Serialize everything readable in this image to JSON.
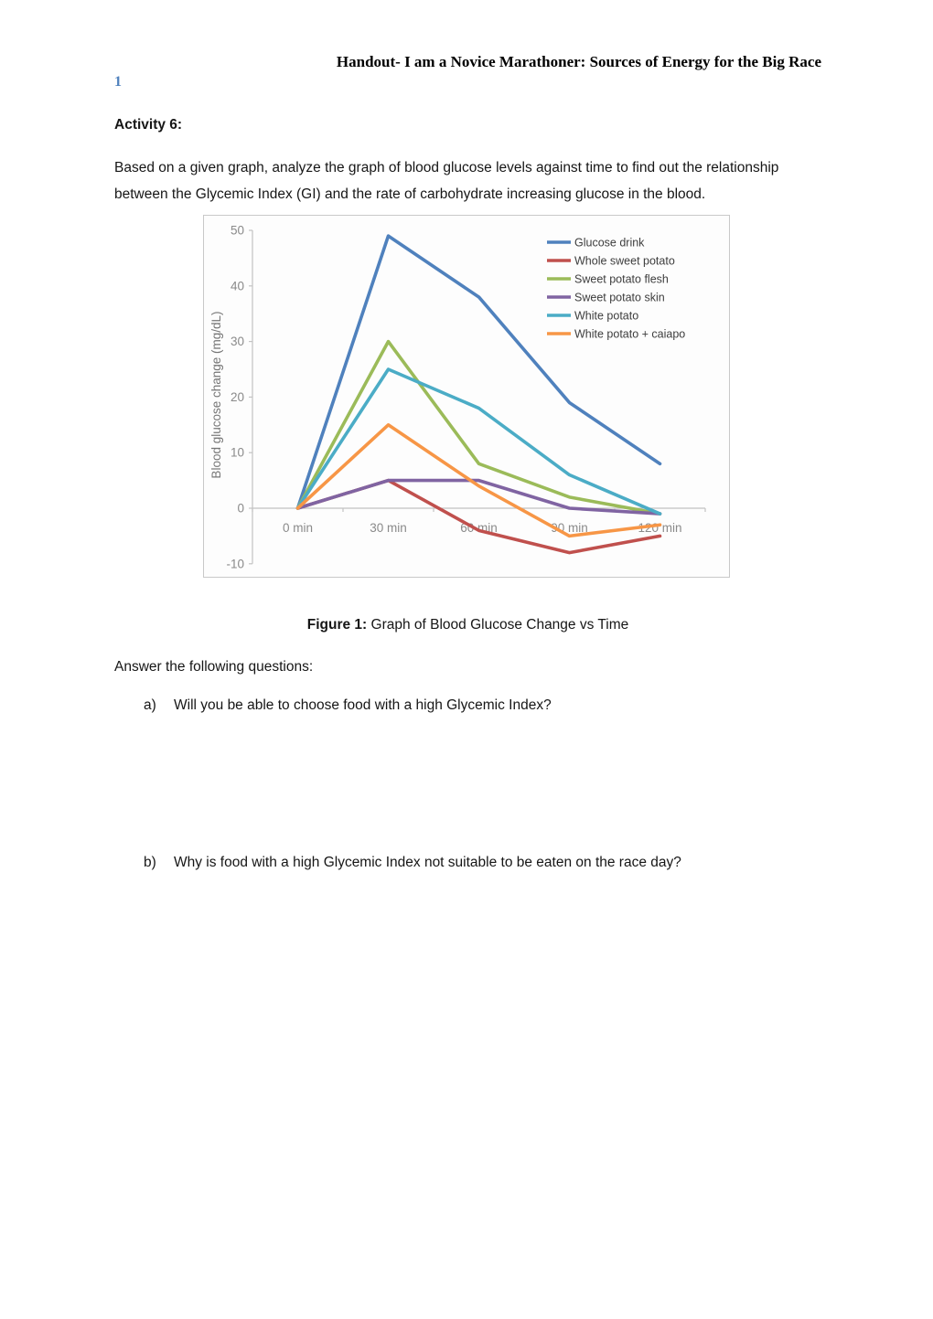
{
  "header": {
    "title": "Handout- I am a Novice Marathoner: Sources of Energy for the Big Race",
    "page_number": "1"
  },
  "activity": {
    "heading": "Activity 6:",
    "description": "Based on a given graph, analyze the graph of blood glucose levels against time to find out the relationship between the Glycemic Index (GI) and the rate of carbohydrate increasing glucose in the blood."
  },
  "figure": {
    "label": "Figure 1:",
    "caption": "Graph of Blood Glucose Change vs Time"
  },
  "questions": {
    "intro": "Answer the following questions:",
    "items": [
      {
        "letter": "a)",
        "text": "Will you be able to choose food with a high Glycemic Index?"
      },
      {
        "letter": "b)",
        "text": "Why is food with a high Glycemic Index not suitable to be eaten on the race day?"
      }
    ]
  },
  "chart_data": {
    "type": "line",
    "title": "",
    "xlabel": "",
    "ylabel": "Blood glucose change (mg/dL)",
    "categories": [
      "0 min",
      "30 min",
      "60 min",
      "90 min",
      "120 min"
    ],
    "x_minutes": [
      0,
      30,
      60,
      90,
      120
    ],
    "ylim": [
      -10,
      50
    ],
    "yticks": [
      -10,
      0,
      10,
      20,
      30,
      40,
      50
    ],
    "grid": false,
    "legend_position": "top-right-inside",
    "axis_color": "#c3c3c3",
    "tick_label_color": "#8a8a8a",
    "series": [
      {
        "name": "Glucose drink",
        "color": "#4F81BD",
        "values": [
          0,
          49,
          38,
          19,
          8
        ]
      },
      {
        "name": "Whole sweet potato",
        "color": "#C0504D",
        "values": [
          0,
          5,
          -4,
          -8,
          -5
        ]
      },
      {
        "name": "Sweet potato flesh",
        "color": "#9BBB59",
        "values": [
          0,
          30,
          8,
          2,
          -1
        ]
      },
      {
        "name": "Sweet potato skin",
        "color": "#8064A2",
        "values": [
          0,
          5,
          5,
          0,
          -1
        ]
      },
      {
        "name": "White potato",
        "color": "#4BACC6",
        "values": [
          0,
          25,
          18,
          6,
          -1
        ]
      },
      {
        "name": "White potato + caiapo",
        "color": "#F79646",
        "values": [
          0,
          15,
          4,
          -5,
          -3
        ]
      }
    ]
  }
}
